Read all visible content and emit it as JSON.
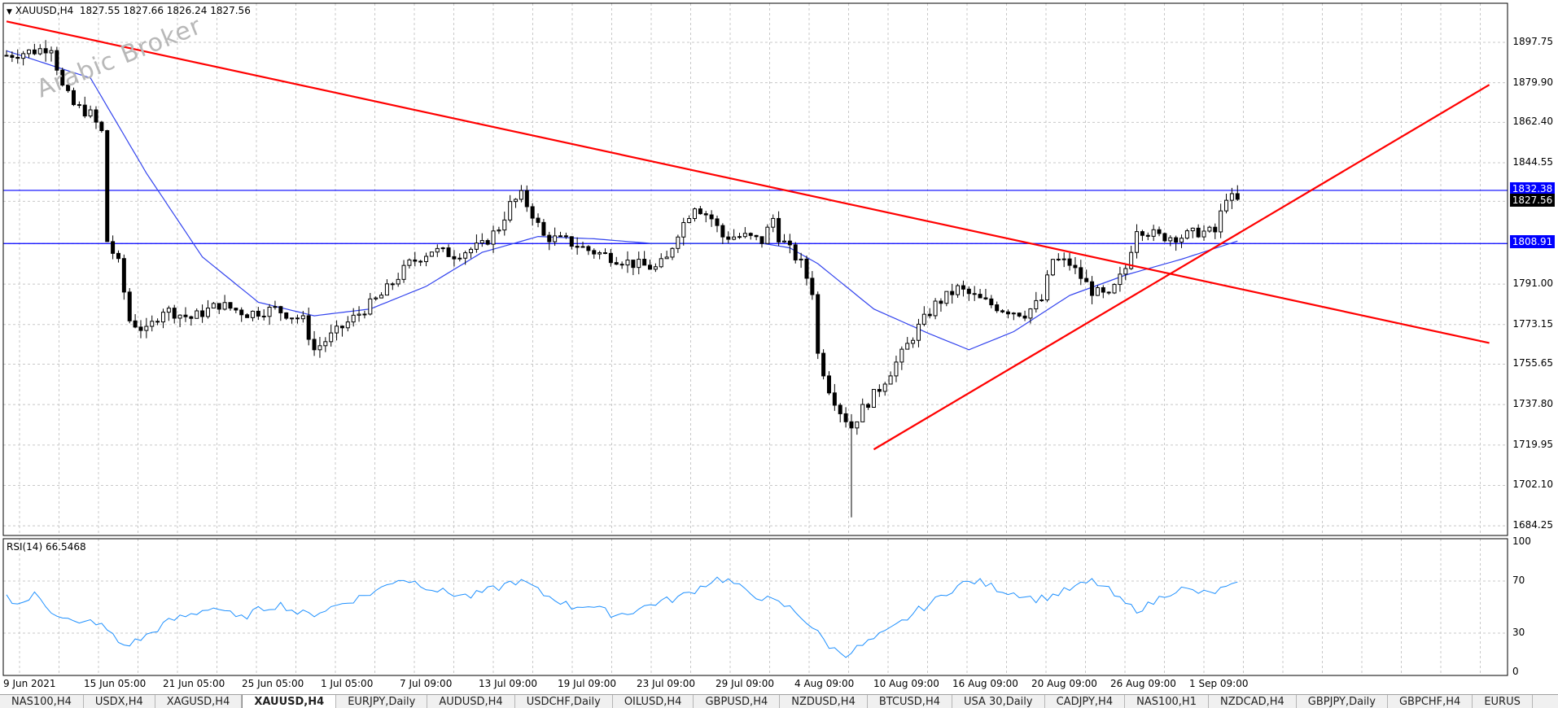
{
  "chart_header": {
    "symbol_line": "XAUUSD,H4",
    "ohlc": "1827.55 1827.66 1826.24 1827.56"
  },
  "watermark": "Arabic Broker",
  "rsi_header": {
    "indicator": "RSI(14)",
    "value": "66.5468"
  },
  "price_tags": {
    "upper_level": "1832.38",
    "current": "1827.56",
    "lower_level": "1808.91"
  },
  "colors": {
    "candle": "#000000",
    "moving_average": "#3344ee",
    "trendline": "#ff0000",
    "horizontal_level": "#0000ff",
    "rsi_line": "#1e90ff",
    "grid": "#c8c8c8",
    "current_price_tag": "#000000",
    "level_tag": "#0000ff"
  },
  "tabs": [
    {
      "label": "NAS100,H4",
      "active": false
    },
    {
      "label": "USDX,H4",
      "active": false
    },
    {
      "label": "XAGUSD,H4",
      "active": false
    },
    {
      "label": "XAUUSD,H4",
      "active": true
    },
    {
      "label": "EURJPY,Daily",
      "active": false
    },
    {
      "label": "AUDUSD,H4",
      "active": false
    },
    {
      "label": "USDCHF,Daily",
      "active": false
    },
    {
      "label": "OILUSD,H4",
      "active": false
    },
    {
      "label": "GBPUSD,H4",
      "active": false
    },
    {
      "label": "NZDUSD,H4",
      "active": false
    },
    {
      "label": "BTCUSD,H4",
      "active": false
    },
    {
      "label": "USA 30,Daily",
      "active": false
    },
    {
      "label": "CADJPY,H4",
      "active": false
    },
    {
      "label": "NAS100,H1",
      "active": false
    },
    {
      "label": "NZDCAD,H4",
      "active": false
    },
    {
      "label": "GBPJPY,Daily",
      "active": false
    },
    {
      "label": "GBPCHF,H4",
      "active": false
    },
    {
      "label": "EURUS",
      "active": false
    }
  ],
  "chart_data": [
    {
      "type": "candlestick",
      "symbol": "XAUUSD",
      "timeframe": "H4",
      "ylim": [
        1680,
        1915
      ],
      "y_ticks": [
        "1897.75",
        "1879.90",
        "1862.40",
        "1844.55",
        "1827.56",
        "1808.91",
        "1791.00",
        "1773.15",
        "1755.65",
        "1737.80",
        "1719.95",
        "1702.10",
        "1684.25"
      ],
      "x_tick_labels": [
        "9 Jun 2021",
        "15 Jun 05:00",
        "21 Jun 05:00",
        "25 Jun 05:00",
        "1 Jul 05:00",
        "7 Jul 09:00",
        "13 Jul 09:00",
        "19 Jul 09:00",
        "23 Jul 09:00",
        "29 Jul 09:00",
        "4 Aug 09:00",
        "10 Aug 09:00",
        "16 Aug 09:00",
        "20 Aug 09:00",
        "26 Aug 09:00",
        "1 Sep 09:00"
      ],
      "grid": true,
      "close_path": [
        [
          0,
          1892
        ],
        [
          5,
          1894
        ],
        [
          8,
          1896
        ],
        [
          10,
          1878
        ],
        [
          12,
          1870
        ],
        [
          15,
          1866
        ],
        [
          17,
          1858
        ],
        [
          18,
          1810
        ],
        [
          20,
          1800
        ],
        [
          22,
          1775
        ],
        [
          25,
          1770
        ],
        [
          28,
          1780
        ],
        [
          33,
          1776
        ],
        [
          38,
          1782
        ],
        [
          43,
          1778
        ],
        [
          48,
          1780
        ],
        [
          53,
          1775
        ],
        [
          55,
          1762
        ],
        [
          58,
          1768
        ],
        [
          60,
          1772
        ],
        [
          63,
          1778
        ],
        [
          67,
          1786
        ],
        [
          72,
          1800
        ],
        [
          76,
          1806
        ],
        [
          80,
          1804
        ],
        [
          85,
          1808
        ],
        [
          88,
          1816
        ],
        [
          90,
          1826
        ],
        [
          92,
          1830
        ],
        [
          94,
          1822
        ],
        [
          96,
          1812
        ],
        [
          100,
          1810
        ],
        [
          104,
          1806
        ],
        [
          108,
          1803
        ],
        [
          112,
          1800
        ],
        [
          116,
          1798
        ],
        [
          118,
          1802
        ],
        [
          120,
          1814
        ],
        [
          123,
          1826
        ],
        [
          126,
          1820
        ],
        [
          128,
          1812
        ],
        [
          132,
          1812
        ],
        [
          135,
          1810
        ],
        [
          137,
          1820
        ],
        [
          138,
          1812
        ],
        [
          140,
          1806
        ],
        [
          142,
          1800
        ],
        [
          144,
          1788
        ],
        [
          145,
          1760
        ],
        [
          147,
          1745
        ],
        [
          149,
          1735
        ],
        [
          151,
          1728
        ],
        [
          153,
          1736
        ],
        [
          156,
          1745
        ],
        [
          160,
          1760
        ],
        [
          163,
          1772
        ],
        [
          166,
          1782
        ],
        [
          170,
          1789
        ],
        [
          174,
          1784
        ],
        [
          178,
          1780
        ],
        [
          182,
          1778
        ],
        [
          185,
          1784
        ],
        [
          187,
          1802
        ],
        [
          190,
          1800
        ],
        [
          194,
          1788
        ],
        [
          197,
          1785
        ],
        [
          200,
          1798
        ],
        [
          202,
          1816
        ],
        [
          206,
          1812
        ],
        [
          210,
          1812
        ],
        [
          213,
          1814
        ],
        [
          216,
          1814
        ],
        [
          218,
          1830
        ],
        [
          220,
          1827.56
        ]
      ],
      "notable_low": 1688,
      "moving_average_path": [
        [
          0,
          1894
        ],
        [
          15,
          1882
        ],
        [
          25,
          1840
        ],
        [
          35,
          1803
        ],
        [
          45,
          1783
        ],
        [
          55,
          1777
        ],
        [
          65,
          1780
        ],
        [
          75,
          1790
        ],
        [
          85,
          1805
        ],
        [
          95,
          1812
        ],
        [
          105,
          1811
        ],
        [
          115,
          1809
        ],
        [
          125,
          1809
        ],
        [
          135,
          1809
        ],
        [
          140,
          1807
        ],
        [
          145,
          1800
        ],
        [
          155,
          1780
        ],
        [
          165,
          1769
        ],
        [
          172,
          1762
        ],
        [
          180,
          1770
        ],
        [
          190,
          1786
        ],
        [
          200,
          1795
        ],
        [
          210,
          1802
        ],
        [
          220,
          1810
        ]
      ],
      "horizontal_levels": [
        1832.38,
        1808.91
      ],
      "trendlines": [
        {
          "name": "descending",
          "from": [
            0,
            1907
          ],
          "to": [
            265,
            1765
          ]
        },
        {
          "name": "ascending",
          "from": [
            155,
            1718
          ],
          "to": [
            265,
            1879
          ]
        }
      ]
    },
    {
      "type": "line",
      "indicator": "RSI(14)",
      "ylim": [
        0,
        100
      ],
      "y_ticks": [
        "100",
        "70",
        "30",
        "0"
      ],
      "values": [
        58,
        52,
        60,
        48,
        42,
        36,
        40,
        32,
        20,
        24,
        30,
        38,
        42,
        45,
        50,
        48,
        40,
        46,
        50,
        52,
        46,
        44,
        48,
        52,
        56,
        60,
        65,
        72,
        70,
        66,
        62,
        60,
        58,
        62,
        65,
        70,
        68,
        60,
        56,
        50,
        52,
        48,
        44,
        46,
        50,
        54,
        56,
        60,
        66,
        72,
        70,
        62,
        58,
        54,
        50,
        42,
        30,
        18,
        14,
        20,
        26,
        32,
        40,
        48,
        54,
        62,
        68,
        70,
        66,
        62,
        60,
        56,
        58,
        62,
        66,
        70,
        64,
        54,
        48,
        52,
        60,
        64,
        62,
        60,
        64,
        66.5
      ]
    }
  ]
}
